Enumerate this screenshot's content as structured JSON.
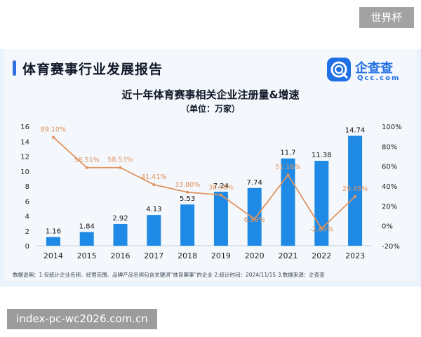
{
  "watermark_top": "世界杯",
  "watermark_bottom": "index-pc-wc2026.com.cn",
  "header": {
    "title": "体育赛事行业发展报告",
    "logo_text": "企查查",
    "logo_sub": "Qcc.com"
  },
  "footnote": "数据说明：1.仅统计企业名称、经营范围、品牌产品名称包含关键词“体育赛事”的企业  2.统计时间：2024/11/15  3.数据来源：企查查",
  "colors": {
    "bar": "#1f8ae6",
    "line": "#e0935e",
    "accent": "#2f6fe0"
  },
  "chart_data": {
    "type": "bar",
    "title": "近十年体育赛事相关企业注册量&增速",
    "subtitle": "（单位：万家）",
    "categories": [
      "2014",
      "2015",
      "2016",
      "2017",
      "2018",
      "2019",
      "2020",
      "2021",
      "2022",
      "2023"
    ],
    "series": [
      {
        "type": "bar",
        "axis": "left",
        "values": [
          1.16,
          1.84,
          2.92,
          4.13,
          5.53,
          7.24,
          7.74,
          11.7,
          11.38,
          14.74
        ],
        "labels": [
          "1.16",
          "1.84",
          "2.92",
          "4.13",
          "5.53",
          "7.24",
          "7.74",
          "11.7",
          "11.38",
          "14.74"
        ]
      },
      {
        "type": "line",
        "axis": "right",
        "values": [
          89.1,
          58.51,
          58.53,
          41.41,
          33.8,
          30.98,
          6.89,
          51.16,
          -2.69,
          29.48
        ],
        "labels": [
          "89.10%",
          "58.51%",
          "58.53%",
          "41.41%",
          "33.80%",
          "30.98%",
          "6.89%",
          "51.16%",
          "-2.69%",
          "29.48%"
        ]
      }
    ],
    "y_left": {
      "min": 0,
      "max": 16,
      "ticks": [
        "0",
        "2",
        "4",
        "6",
        "8",
        "10",
        "12",
        "14",
        "16"
      ]
    },
    "y_right": {
      "min": -20,
      "max": 100,
      "ticks": [
        "-20%",
        "0%",
        "20%",
        "40%",
        "60%",
        "80%",
        "100%"
      ]
    },
    "grid": false,
    "legend": "none"
  }
}
